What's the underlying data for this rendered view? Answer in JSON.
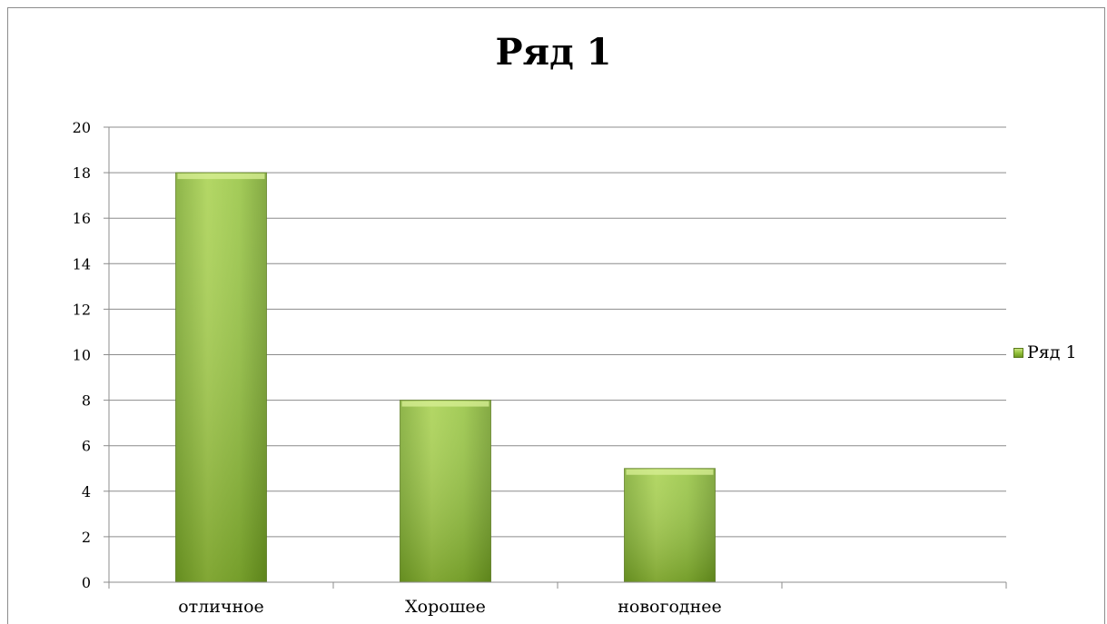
{
  "chart_data": {
    "type": "bar",
    "title": "Ряд 1",
    "categories": [
      "отличное",
      "Хорошее",
      "новогоднее",
      ""
    ],
    "series": [
      {
        "name": "Ряд 1",
        "values": [
          18,
          8,
          5,
          null
        ]
      }
    ],
    "yticks": [
      0,
      2,
      4,
      6,
      8,
      10,
      12,
      14,
      16,
      18,
      20
    ],
    "ylim": [
      0,
      20
    ],
    "grid": true,
    "legend": "right",
    "colors": {
      "bar_top": "#c8e37c",
      "bar_mid": "#8fbe37",
      "bar_bottom": "#6f9a24",
      "bar_edge": "#5a7a1c",
      "grid": "#8c8c8c"
    }
  }
}
